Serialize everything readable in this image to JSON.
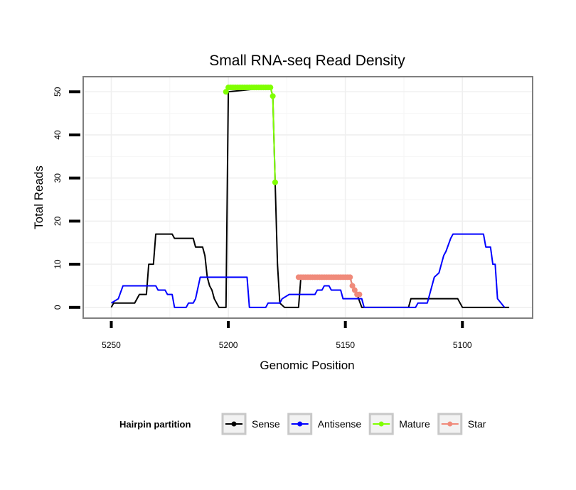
{
  "chart_data": {
    "type": "line",
    "title": "Small RNA-seq Read Density",
    "xlabel": "Genomic Position",
    "ylabel": "Total Reads",
    "xlim": [
      5262,
      5070
    ],
    "ylim": [
      -2.5,
      53.5
    ],
    "x_reversed": true,
    "xticks": [
      5250,
      5200,
      5150,
      5100
    ],
    "yticks": [
      0,
      10,
      20,
      30,
      40,
      50
    ],
    "grid": true,
    "legend": {
      "title": "Hairpin partition",
      "position": "bottom",
      "entries": [
        "Sense",
        "Antisense",
        "Mature",
        "Star"
      ]
    },
    "series": [
      {
        "name": "Sense",
        "color": "#000000",
        "markers": false,
        "points": [
          [
            5250,
            0
          ],
          [
            5249,
            1
          ],
          [
            5240,
            1
          ],
          [
            5238,
            3
          ],
          [
            5235,
            3
          ],
          [
            5234,
            10
          ],
          [
            5232,
            10
          ],
          [
            5231,
            17
          ],
          [
            5224,
            17
          ],
          [
            5223,
            16
          ],
          [
            5215,
            16
          ],
          [
            5214,
            14
          ],
          [
            5211,
            14
          ],
          [
            5210,
            12
          ],
          [
            5209,
            7
          ],
          [
            5208,
            5
          ],
          [
            5207,
            4
          ],
          [
            5206,
            2
          ],
          [
            5204,
            0
          ],
          [
            5201,
            0
          ],
          [
            5200,
            50
          ],
          [
            5182,
            51
          ],
          [
            5181,
            49
          ],
          [
            5180,
            29
          ],
          [
            5179,
            10
          ],
          [
            5178,
            1
          ],
          [
            5176,
            0
          ],
          [
            5170,
            0
          ],
          [
            5169,
            7
          ],
          [
            5148,
            7
          ],
          [
            5147,
            5
          ],
          [
            5146,
            4
          ],
          [
            5145,
            3
          ],
          [
            5143,
            0
          ],
          [
            5123,
            0
          ],
          [
            5122,
            2
          ],
          [
            5102,
            2
          ],
          [
            5100,
            0
          ],
          [
            5080,
            0
          ]
        ]
      },
      {
        "name": "Antisense",
        "color": "#0000ff",
        "markers": false,
        "points": [
          [
            5250,
            1
          ],
          [
            5247,
            2
          ],
          [
            5245,
            5
          ],
          [
            5231,
            5
          ],
          [
            5230,
            4
          ],
          [
            5227,
            4
          ],
          [
            5226,
            3
          ],
          [
            5224,
            3
          ],
          [
            5223,
            0
          ],
          [
            5218,
            0
          ],
          [
            5217,
            1
          ],
          [
            5215,
            1
          ],
          [
            5214,
            2
          ],
          [
            5212,
            7
          ],
          [
            5192,
            7
          ],
          [
            5191,
            0
          ],
          [
            5184,
            0
          ],
          [
            5183,
            1
          ],
          [
            5178,
            1
          ],
          [
            5177,
            2
          ],
          [
            5174,
            3
          ],
          [
            5163,
            3
          ],
          [
            5162,
            4
          ],
          [
            5160,
            4
          ],
          [
            5159,
            5
          ],
          [
            5157,
            5
          ],
          [
            5156,
            4
          ],
          [
            5152,
            4
          ],
          [
            5151,
            2
          ],
          [
            5143,
            2
          ],
          [
            5142,
            0
          ],
          [
            5120,
            0
          ],
          [
            5119,
            1
          ],
          [
            5115,
            1
          ],
          [
            5114,
            3
          ],
          [
            5112,
            7
          ],
          [
            5110,
            8
          ],
          [
            5108,
            12
          ],
          [
            5107,
            13
          ],
          [
            5105,
            16
          ],
          [
            5104,
            17
          ],
          [
            5091,
            17
          ],
          [
            5090,
            14
          ],
          [
            5088,
            14
          ],
          [
            5087,
            10
          ],
          [
            5086,
            10
          ],
          [
            5085,
            2
          ],
          [
            5082,
            0
          ]
        ]
      },
      {
        "name": "Mature",
        "color": "#7fff00",
        "markers": true,
        "points": [
          [
            5201,
            50
          ],
          [
            5200,
            51
          ],
          [
            5199,
            51
          ],
          [
            5198,
            51
          ],
          [
            5197,
            51
          ],
          [
            5196,
            51
          ],
          [
            5195,
            51
          ],
          [
            5194,
            51
          ],
          [
            5193,
            51
          ],
          [
            5192,
            51
          ],
          [
            5191,
            51
          ],
          [
            5190,
            51
          ],
          [
            5189,
            51
          ],
          [
            5188,
            51
          ],
          [
            5187,
            51
          ],
          [
            5186,
            51
          ],
          [
            5185,
            51
          ],
          [
            5184,
            51
          ],
          [
            5183,
            51
          ],
          [
            5182,
            51
          ],
          [
            5181,
            49
          ],
          [
            5180,
            29
          ]
        ]
      },
      {
        "name": "Star",
        "color": "#f08a7a",
        "markers": true,
        "points": [
          [
            5170,
            7
          ],
          [
            5169,
            7
          ],
          [
            5168,
            7
          ],
          [
            5167,
            7
          ],
          [
            5166,
            7
          ],
          [
            5165,
            7
          ],
          [
            5164,
            7
          ],
          [
            5163,
            7
          ],
          [
            5162,
            7
          ],
          [
            5161,
            7
          ],
          [
            5160,
            7
          ],
          [
            5159,
            7
          ],
          [
            5158,
            7
          ],
          [
            5157,
            7
          ],
          [
            5156,
            7
          ],
          [
            5155,
            7
          ],
          [
            5154,
            7
          ],
          [
            5153,
            7
          ],
          [
            5152,
            7
          ],
          [
            5151,
            7
          ],
          [
            5150,
            7
          ],
          [
            5149,
            7
          ],
          [
            5148,
            7
          ],
          [
            5147,
            5
          ],
          [
            5146,
            4
          ],
          [
            5145,
            3
          ],
          [
            5144,
            3
          ]
        ]
      }
    ]
  }
}
